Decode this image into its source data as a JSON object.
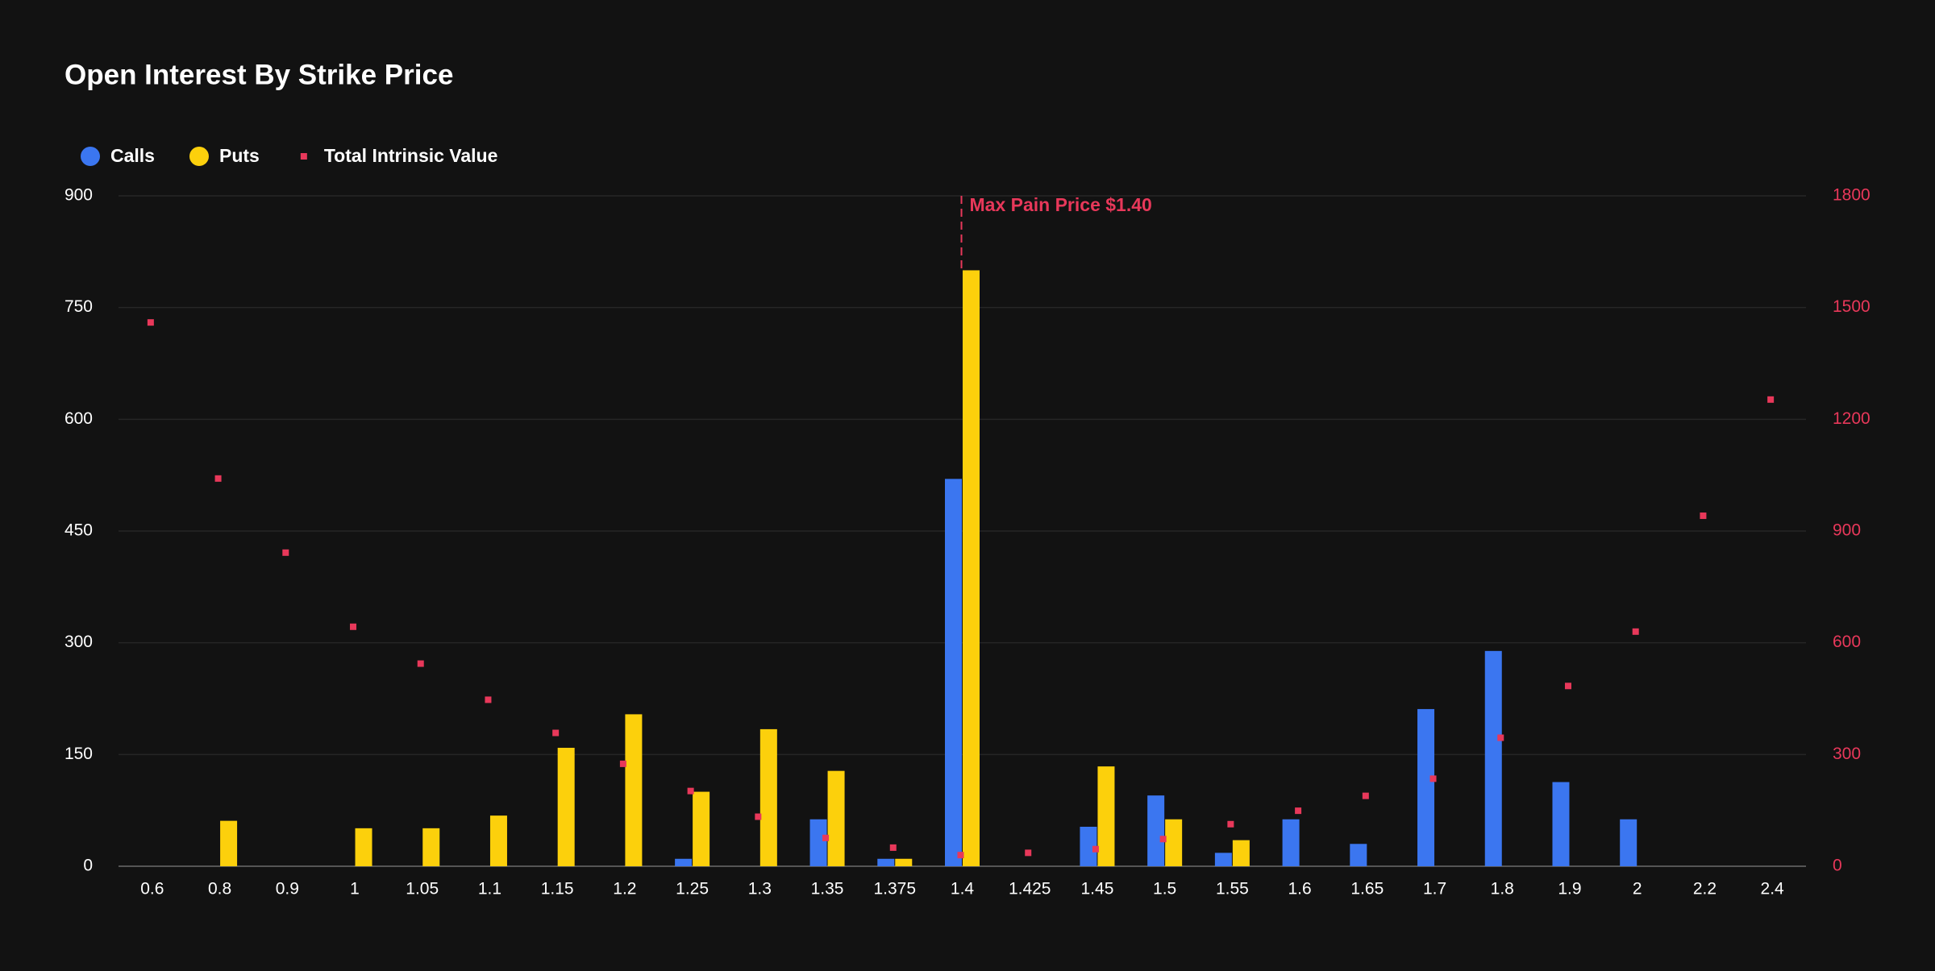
{
  "chart_data": {
    "type": "bar",
    "title": "Open Interest By Strike Price",
    "categories": [
      "0.6",
      "0.8",
      "0.9",
      "1",
      "1.05",
      "1.1",
      "1.15",
      "1.2",
      "1.25",
      "1.3",
      "1.35",
      "1.375",
      "1.4",
      "1.425",
      "1.45",
      "1.5",
      "1.55",
      "1.6",
      "1.65",
      "1.7",
      "1.8",
      "1.9",
      "2",
      "2.2",
      "2.4"
    ],
    "series": [
      {
        "name": "Calls",
        "type": "bar",
        "color": "#3b76f0",
        "values": [
          0,
          0,
          0,
          0,
          0,
          0,
          0,
          0,
          10,
          0,
          63,
          10,
          520,
          0,
          53,
          95,
          18,
          63,
          30,
          211,
          289,
          113,
          63,
          0,
          0
        ]
      },
      {
        "name": "Puts",
        "type": "bar",
        "color": "#fcd00c",
        "values": [
          0,
          61,
          0,
          51,
          51,
          68,
          159,
          204,
          100,
          184,
          128,
          10,
          800,
          0,
          134,
          63,
          35,
          0,
          0,
          0,
          0,
          0,
          0,
          0,
          0
        ]
      },
      {
        "name": "Total Intrinsic Value",
        "type": "scatter",
        "axis": "y2",
        "color": "#e8385a",
        "values": [
          1460,
          1041,
          842,
          643,
          544,
          447,
          358,
          275,
          202,
          133,
          76,
          50,
          30,
          36,
          46,
          73,
          113,
          149,
          189,
          235,
          345,
          484,
          630,
          941,
          1253
        ]
      }
    ],
    "ylim": [
      0,
      900
    ],
    "yticks": [
      0,
      150,
      300,
      450,
      600,
      750,
      900
    ],
    "y2lim": [
      0,
      1800
    ],
    "y2ticks": [
      0,
      300,
      600,
      900,
      1200,
      1500,
      1800
    ],
    "y2_color": "#e8385a",
    "grid": true,
    "annotation": {
      "text": "Max Pain Price $1.40",
      "category": "1.4",
      "color": "#e8385a"
    }
  }
}
